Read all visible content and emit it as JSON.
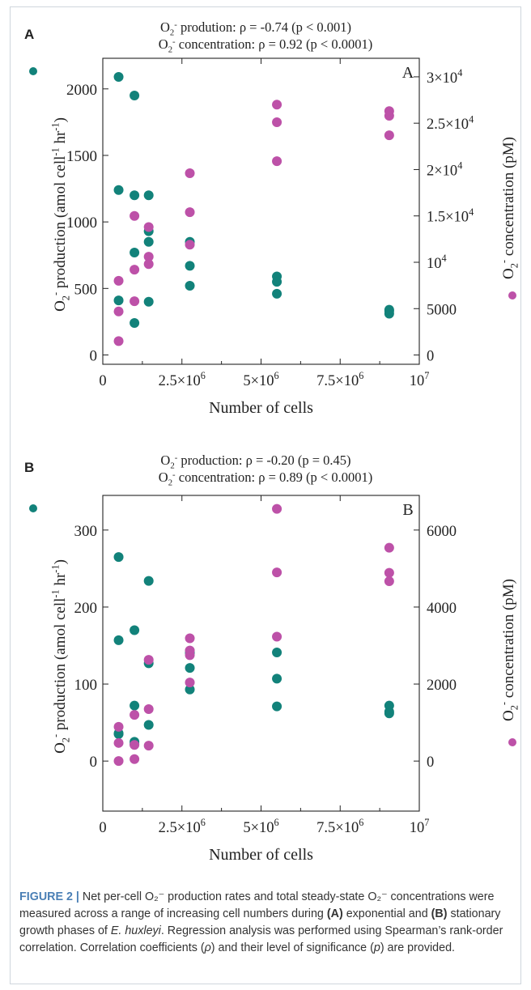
{
  "colors": {
    "production": "#12827a",
    "concentration": "#bd51a8"
  },
  "caption": {
    "figure_label": "FIGURE 2 |",
    "text_1": " Net per-cell ",
    "ion_1": "O₂⁻",
    "text_2": " production rates and total steady-state ",
    "ion_2": "O₂⁻",
    "text_3": " concentrations were measured across a range of increasing cell numbers during ",
    "bold_a": "(A)",
    "text_4": " exponential and ",
    "bold_b": "(B)",
    "text_5": " stationary growth phases of ",
    "species": "E. huxleyi",
    "text_6": ". Regression analysis was performed using Spearman’s rank-order correlation. Correlation coefficients (",
    "rho": "ρ",
    "text_7": ") and their level of significance (",
    "p": "p",
    "text_8": ") are provided."
  },
  "chart_data": [
    {
      "type": "scatter",
      "panel_label": "A",
      "inset_label": "A",
      "title_lines": [
        {
          "ion": "O₂⁻",
          "text": " prodution: ρ = -0.74 (p < 0.001)"
        },
        {
          "ion": "O₂⁻",
          "text": " concentration: ρ = 0.92 (p < 0.0001)"
        }
      ],
      "xlabel": "Number of cells",
      "xlim": [
        0,
        10000000
      ],
      "xticks": [
        0,
        2500000,
        5000000,
        7500000,
        10000000
      ],
      "xtick_labels": [
        {
          "base": "0",
          "exp": ""
        },
        {
          "base": "2.5×10",
          "exp": "6"
        },
        {
          "base": "5×10",
          "exp": "6"
        },
        {
          "base": "7.5×10",
          "exp": "6"
        },
        {
          "base": "10",
          "exp": "7"
        }
      ],
      "ylabel_left": {
        "prefix": "O",
        "sub": "2",
        "sup": "-",
        "rest": " production (amol cell",
        "sup2": "-1",
        "mid": " hr",
        "sup3": "-1",
        "end": ")"
      },
      "ylim_left": [
        -70,
        2230
      ],
      "yticks_left": [
        0,
        500,
        1000,
        1500,
        2000
      ],
      "yticklabels_left": [
        "0",
        "500",
        "1000",
        "1500",
        "2000"
      ],
      "ylabel_right": {
        "prefix": "O",
        "sub": "2",
        "sup": "-",
        "rest": " concentration (pM)"
      },
      "ylim_right": [
        -1000,
        32000
      ],
      "yticks_right": [
        0,
        5000,
        10000,
        15000,
        20000,
        25000,
        30000
      ],
      "yticklabels_right": [
        {
          "base": "0",
          "exp": ""
        },
        {
          "base": "5000",
          "exp": ""
        },
        {
          "base": "10",
          "exp": "4"
        },
        {
          "base": "1.5×10",
          "exp": "4"
        },
        {
          "base": "2×10",
          "exp": "4"
        },
        {
          "base": "2.5×10",
          "exp": "4"
        },
        {
          "base": "3×10",
          "exp": "4"
        }
      ],
      "grid": false,
      "series": [
        {
          "name": "O₂⁻ production",
          "axis": "left",
          "color_key": "production",
          "x": [
            500000,
            500000,
            500000,
            1000000,
            1000000,
            1000000,
            1000000,
            1450000,
            1450000,
            1450000,
            1450000,
            2750000,
            2750000,
            2750000,
            5500000,
            5500000,
            5500000,
            9050000,
            9050000,
            9050000
          ],
          "y": [
            2090,
            1240,
            410,
            1950,
            1200,
            770,
            240,
            1200,
            930,
            850,
            400,
            850,
            670,
            520,
            590,
            550,
            460,
            340,
            330,
            310
          ]
        },
        {
          "name": "O₂⁻ concentration",
          "axis": "right",
          "color_key": "concentration",
          "x": [
            500000,
            500000,
            500000,
            1000000,
            1000000,
            1000000,
            1450000,
            1450000,
            1450000,
            2750000,
            2750000,
            2750000,
            5500000,
            5500000,
            5500000,
            9050000,
            9050000,
            9050000
          ],
          "y": [
            8000,
            4700,
            1500,
            15000,
            9200,
            5800,
            13800,
            10600,
            9800,
            19600,
            15400,
            11900,
            27000,
            25100,
            20900,
            26300,
            25800,
            23700
          ]
        }
      ]
    },
    {
      "type": "scatter",
      "panel_label": "B",
      "inset_label": "B",
      "title_lines": [
        {
          "ion": "O₂⁻",
          "text": " production: ρ = -0.20 (p = 0.45)"
        },
        {
          "ion": "O₂⁻",
          "text": " concentration: ρ = 0.89 (p < 0.0001)"
        }
      ],
      "xlabel": "Number of cells",
      "xlim": [
        0,
        10000000
      ],
      "xticks": [
        0,
        2500000,
        5000000,
        7500000,
        10000000
      ],
      "xtick_labels": [
        {
          "base": "0",
          "exp": ""
        },
        {
          "base": "2.5×10",
          "exp": "6"
        },
        {
          "base": "5×10",
          "exp": "6"
        },
        {
          "base": "7.5×10",
          "exp": "6"
        },
        {
          "base": "10",
          "exp": "7"
        }
      ],
      "ylabel_left": {
        "prefix": "O",
        "sub": "2",
        "sup": "-",
        "rest": " production (amol cell",
        "sup2": "-1",
        "mid": " hr",
        "sup3": "-1",
        "end": ")"
      },
      "ylim_left": [
        -65,
        345
      ],
      "yticks_left": [
        0,
        100,
        200,
        300
      ],
      "yticklabels_left": [
        "0",
        "100",
        "200",
        "300"
      ],
      "ylabel_right": {
        "prefix": "O",
        "sub": "2",
        "sup": "-",
        "rest": " concentration (pM)"
      },
      "ylim_right": [
        -1300,
        6900
      ],
      "yticks_right": [
        0,
        2000,
        4000,
        6000
      ],
      "yticklabels_right": [
        {
          "base": "0",
          "exp": ""
        },
        {
          "base": "2000",
          "exp": ""
        },
        {
          "base": "4000",
          "exp": ""
        },
        {
          "base": "6000",
          "exp": ""
        }
      ],
      "grid": false,
      "series": [
        {
          "name": "O₂⁻ production",
          "axis": "left",
          "color_key": "production",
          "x": [
            500000,
            500000,
            500000,
            1000000,
            1000000,
            1000000,
            1000000,
            1450000,
            1450000,
            1450000,
            2750000,
            2750000,
            2750000,
            2750000,
            5500000,
            5500000,
            5500000,
            9050000,
            9050000,
            9050000
          ],
          "y": [
            265,
            157,
            35,
            170,
            72,
            25,
            22,
            234,
            127,
            47,
            143,
            140,
            121,
            93,
            141,
            107,
            71,
            72,
            64,
            62
          ],
          "extra_marker": {
            "x": 500000,
            "y": 36
          }
        },
        {
          "name": "O₂⁻ concentration",
          "axis": "right",
          "color_key": "concentration",
          "x": [
            500000,
            500000,
            500000,
            1000000,
            1000000,
            1000000,
            1450000,
            1450000,
            1450000,
            2750000,
            2750000,
            2750000,
            2750000,
            5500000,
            5500000,
            5500000,
            9050000,
            9050000,
            9050000
          ],
          "y": [
            890,
            470,
            0,
            1200,
            420,
            50,
            2630,
            1350,
            400,
            3190,
            2750,
            2040,
            2870,
            6550,
            4900,
            3230,
            5540,
            4890,
            4670
          ]
        }
      ]
    }
  ]
}
